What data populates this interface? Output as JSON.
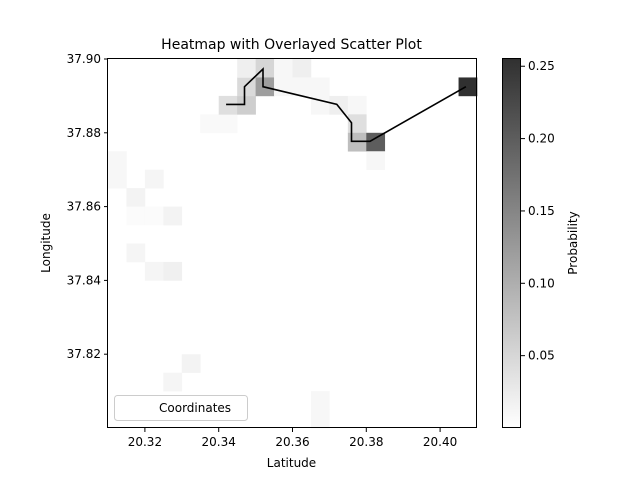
{
  "chart_data": {
    "type": "heatmap",
    "title": "Heatmap with Overlayed Scatter Plot",
    "xlabel": "Latitude",
    "ylabel": "Longitude",
    "xlim": [
      20.31,
      20.41
    ],
    "ylim": [
      37.8,
      37.9
    ],
    "x_ticks": [
      20.32,
      20.34,
      20.36,
      20.38,
      20.4
    ],
    "x_tick_labels": [
      "20.32",
      "20.34",
      "20.36",
      "20.38",
      "20.40"
    ],
    "y_ticks": [
      37.82,
      37.84,
      37.86,
      37.88,
      37.9
    ],
    "y_tick_labels": [
      "37.82",
      "37.84",
      "37.86",
      "37.88",
      "37.90"
    ],
    "grid": false,
    "legend": {
      "entries": [
        "Coordinates"
      ],
      "placement": "lower-left"
    },
    "colorbar": {
      "label": "Probability",
      "range": [
        0.0,
        0.255
      ],
      "ticks": [
        0.05,
        0.1,
        0.15,
        0.2,
        0.25
      ],
      "tick_labels": [
        "0.05",
        "0.10",
        "0.15",
        "0.20",
        "0.25"
      ],
      "colormap": "Greys"
    },
    "grid_size": [
      20,
      20
    ],
    "cells": [
      {
        "col": 0,
        "row": 5,
        "value": 0.01
      },
      {
        "col": 0,
        "row": 6,
        "value": 0.01
      },
      {
        "col": 1,
        "row": 7,
        "value": 0.015
      },
      {
        "col": 1,
        "row": 8,
        "value": 0.005
      },
      {
        "col": 2,
        "row": 8,
        "value": 0.005
      },
      {
        "col": 3,
        "row": 8,
        "value": 0.015
      },
      {
        "col": 2,
        "row": 6,
        "value": 0.012
      },
      {
        "col": 1,
        "row": 10,
        "value": 0.012
      },
      {
        "col": 2,
        "row": 11,
        "value": 0.012
      },
      {
        "col": 3,
        "row": 11,
        "value": 0.018
      },
      {
        "col": 4,
        "row": 16,
        "value": 0.015
      },
      {
        "col": 3,
        "row": 17,
        "value": 0.012
      },
      {
        "col": 11,
        "row": 18,
        "value": 0.01
      },
      {
        "col": 11,
        "row": 19,
        "value": 0.01
      },
      {
        "col": 5,
        "row": 3,
        "value": 0.008
      },
      {
        "col": 6,
        "row": 3,
        "value": 0.008
      },
      {
        "col": 6,
        "row": 2,
        "value": 0.04
      },
      {
        "col": 7,
        "row": 2,
        "value": 0.06
      },
      {
        "col": 7,
        "row": 1,
        "value": 0.045
      },
      {
        "col": 7,
        "row": 0,
        "value": 0.02
      },
      {
        "col": 8,
        "row": 0,
        "value": 0.05
      },
      {
        "col": 8,
        "row": 1,
        "value": 0.12
      },
      {
        "col": 9,
        "row": 0,
        "value": 0.01
      },
      {
        "col": 9,
        "row": 1,
        "value": 0.01
      },
      {
        "col": 10,
        "row": 0,
        "value": 0.02
      },
      {
        "col": 10,
        "row": 1,
        "value": 0.01
      },
      {
        "col": 11,
        "row": 1,
        "value": 0.01
      },
      {
        "col": 11,
        "row": 2,
        "value": 0.01
      },
      {
        "col": 12,
        "row": 2,
        "value": 0.02
      },
      {
        "col": 13,
        "row": 2,
        "value": 0.01
      },
      {
        "col": 13,
        "row": 3,
        "value": 0.04
      },
      {
        "col": 13,
        "row": 4,
        "value": 0.08
      },
      {
        "col": 14,
        "row": 4,
        "value": 0.2
      },
      {
        "col": 14,
        "row": 5,
        "value": 0.01
      },
      {
        "col": 19,
        "row": 1,
        "value": 0.255
      }
    ],
    "series": [
      {
        "name": "Coordinates",
        "type": "line",
        "x": [
          20.342,
          20.347,
          20.347,
          20.352,
          20.352,
          20.372,
          20.376,
          20.376,
          20.381,
          20.407
        ],
        "y": [
          37.8877,
          37.8877,
          37.8925,
          37.8973,
          37.8925,
          37.8877,
          37.8827,
          37.8777,
          37.8777,
          37.8925
        ]
      }
    ]
  }
}
